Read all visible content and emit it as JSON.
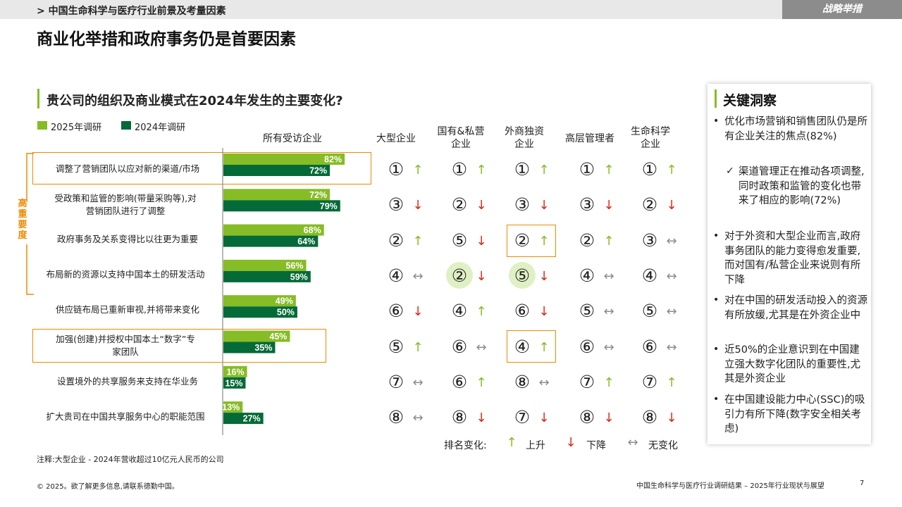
{
  "header": {
    "breadcrumb": "> 中国生命科学与医疗行业前景及考量因素",
    "tag": "战略举措",
    "title": "商业化举措和政府事务仍是首要因素"
  },
  "question": "贵公司的组织及商业模式在2024年发生的主要变化?",
  "legend": {
    "series_2025": "2025年调研",
    "series_2024": "2024年调研",
    "color_2025": "#86bc25",
    "color_2024": "#046a38"
  },
  "priority_label": "高重要度",
  "columns": {
    "all": "所有受访企业",
    "large": "大型企业",
    "soe_private": "国有&私营企业",
    "foreign": "外商独资企业",
    "executives": "高层管理者",
    "life_science": "生命科学企业"
  },
  "chart_data": {
    "type": "bar",
    "orientation": "horizontal",
    "title": "贵公司的组织及商业模式在2024年发生的主要变化?",
    "xlabel": "",
    "ylabel": "",
    "xlim": [
      0,
      100
    ],
    "value_suffix": "%",
    "categories": [
      "调整了营销团队以应对新的渠道/市场",
      "受政策和监管的影响(带量采购等),对营销团队进行了调整",
      "政府事务及关系变得比以往更为重要",
      "布局新的资源以支持中国本土的研发活动",
      "供应链布局已重新审视,并将带来变化",
      "加强(创建)并授权中国本土“数字”专家团队",
      "设置境外的共享服务来支持在华业务",
      "扩大贵司在中国共享服务中心的职能范围"
    ],
    "series": [
      {
        "name": "2025年调研",
        "color": "#86bc25",
        "values": [
          82,
          72,
          68,
          56,
          49,
          45,
          16,
          13
        ]
      },
      {
        "name": "2024年调研",
        "color": "#046a38",
        "values": [
          72,
          79,
          64,
          59,
          50,
          35,
          15,
          27
        ]
      }
    ],
    "legend": "top-left",
    "grid": false
  },
  "rankings": {
    "large": [
      {
        "rank": "①",
        "change": "up"
      },
      {
        "rank": "③",
        "change": "down"
      },
      {
        "rank": "②",
        "change": "up"
      },
      {
        "rank": "④",
        "change": "same"
      },
      {
        "rank": "⑥",
        "change": "down"
      },
      {
        "rank": "⑤",
        "change": "up"
      },
      {
        "rank": "⑦",
        "change": "same"
      },
      {
        "rank": "⑧",
        "change": "same"
      }
    ],
    "soe_private": [
      {
        "rank": "①",
        "change": "up"
      },
      {
        "rank": "②",
        "change": "down"
      },
      {
        "rank": "⑤",
        "change": "down"
      },
      {
        "rank": "②",
        "change": "down"
      },
      {
        "rank": "④",
        "change": "up"
      },
      {
        "rank": "⑥",
        "change": "same"
      },
      {
        "rank": "⑥",
        "change": "up"
      },
      {
        "rank": "⑧",
        "change": "down"
      }
    ],
    "foreign": [
      {
        "rank": "①",
        "change": "up"
      },
      {
        "rank": "③",
        "change": "down"
      },
      {
        "rank": "②",
        "change": "up"
      },
      {
        "rank": "⑤",
        "change": "down"
      },
      {
        "rank": "⑥",
        "change": "down"
      },
      {
        "rank": "④",
        "change": "up"
      },
      {
        "rank": "⑧",
        "change": "same"
      },
      {
        "rank": "⑦",
        "change": "down"
      }
    ],
    "executives": [
      {
        "rank": "①",
        "change": "up"
      },
      {
        "rank": "③",
        "change": "down"
      },
      {
        "rank": "②",
        "change": "up"
      },
      {
        "rank": "④",
        "change": "same"
      },
      {
        "rank": "⑤",
        "change": "same"
      },
      {
        "rank": "⑥",
        "change": "same"
      },
      {
        "rank": "⑦",
        "change": "up"
      },
      {
        "rank": "⑧",
        "change": "down"
      }
    ],
    "life_science": [
      {
        "rank": "①",
        "change": "up"
      },
      {
        "rank": "②",
        "change": "down"
      },
      {
        "rank": "③",
        "change": "same"
      },
      {
        "rank": "④",
        "change": "same"
      },
      {
        "rank": "⑤",
        "change": "same"
      },
      {
        "rank": "⑥",
        "change": "same"
      },
      {
        "rank": "⑦",
        "change": "up"
      },
      {
        "rank": "⑧",
        "change": "down"
      }
    ]
  },
  "arrow_glyphs": {
    "up": "↑",
    "down": "↓",
    "same": "↔"
  },
  "arrow_colors": {
    "up": "#86bc25",
    "down": "#da291c",
    "same": "#8c8c8c"
  },
  "rank_legend": {
    "label": "排名变化:",
    "up": "上升",
    "down": "下降",
    "same": "无变化"
  },
  "insights": {
    "title": "关键洞察",
    "items": [
      "优化市场营销和销售团队仍是所有企业关注的焦点(82%)",
      "渠道管理正在推动各项调整,同时政策和监管的变化也带来了相应的影响(72%)",
      "对于外资和大型企业而言,政府事务团队的能力变得愈发重要,而对国有/私营企业来说则有所下降",
      "对在中国的研发活动投入的资源有所放缓,尤其是在外资企业中",
      "近50%的企业意识到在中国建立强大数字化团队的重要性,尤其是外资企业",
      "在中国建设能力中心(SSC)的吸引力有所下降(数字安全相关考虑)"
    ]
  },
  "note": "注释:大型企业 - 2024年营收超过10亿元人民币的公司",
  "footer": {
    "left": "© 2025。欲了解更多信息,请联系德勤中国。",
    "right": "中国生命科学与医疗行业调研结果 – 2025年行业现状与展望",
    "page": "7"
  }
}
